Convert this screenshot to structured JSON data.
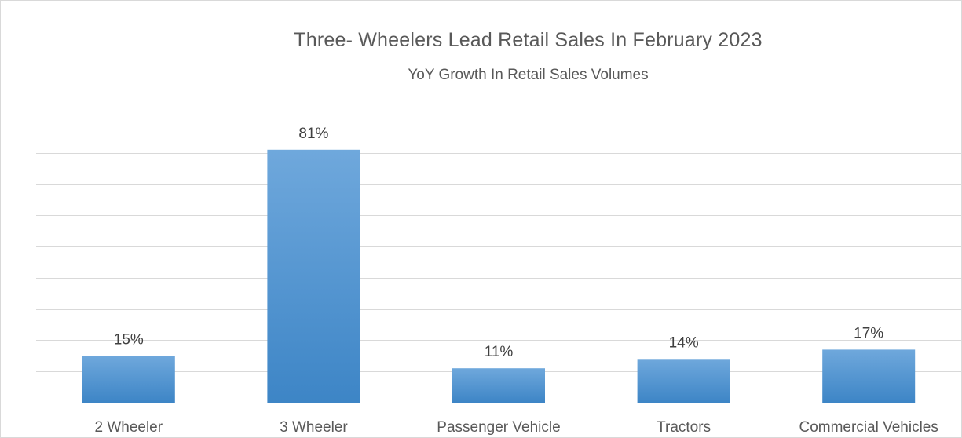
{
  "chart_data": {
    "type": "bar",
    "title": "Three- Wheelers Lead Retail Sales In February 2023",
    "subtitle": "YoY  Growth In Retail Sales Volumes",
    "categories": [
      "2 Wheeler",
      "3 Wheeler",
      "Passenger Vehicle",
      "Tractors",
      "Commercial Vehicles"
    ],
    "values": [
      15,
      81,
      11,
      14,
      17
    ],
    "data_labels": [
      "15%",
      "81%",
      "11%",
      "14%",
      "17%"
    ],
    "value_unit": "%",
    "ylim": [
      0,
      90
    ],
    "y_gridline_step": 10,
    "grid": true,
    "legend": "none",
    "bar_color_top": "#6fa8dc",
    "bar_color_bottom": "#3d85c6",
    "gridline_color": "#d9d9d9"
  }
}
